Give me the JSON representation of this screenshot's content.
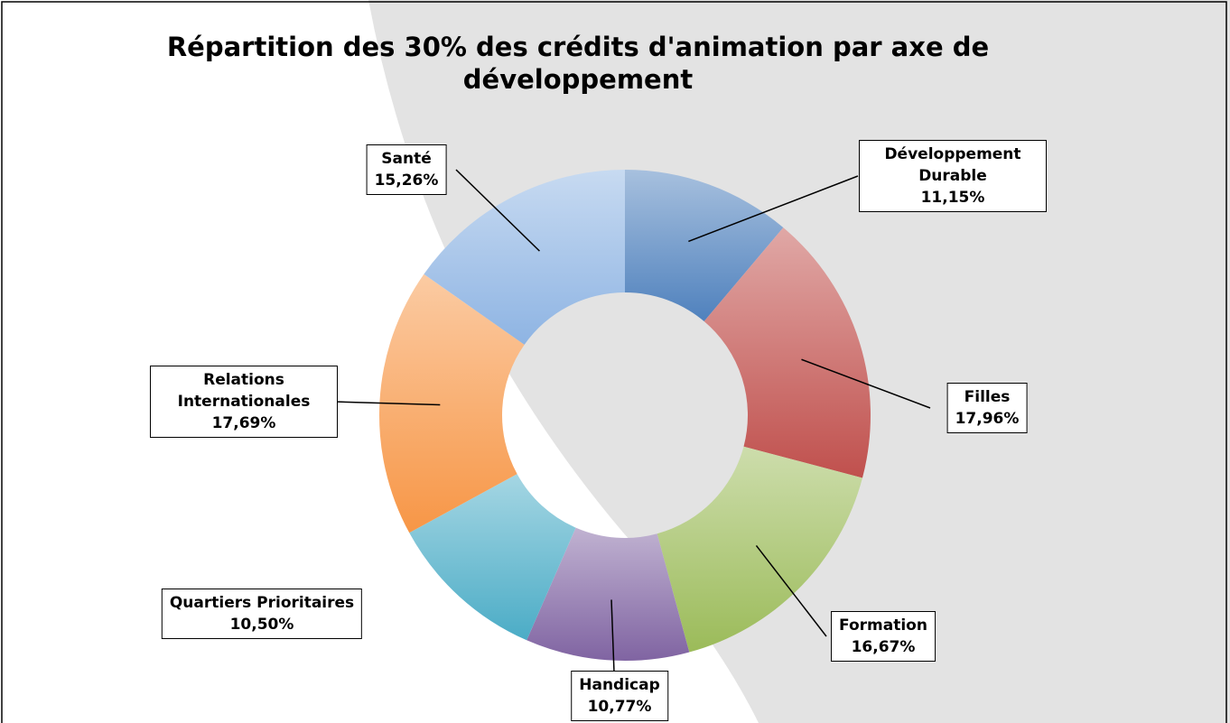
{
  "chart_data": {
    "type": "donut",
    "title": "Répartition des 30% des crédits d'animation par axe de développement",
    "categories": [
      "Développement Durable",
      "Filles",
      "Formation",
      "Handicap",
      "Quartiers Prioritaires",
      "Relations Internationales",
      "Santé"
    ],
    "values": [
      11.15,
      17.96,
      16.67,
      10.77,
      10.5,
      17.69,
      15.26
    ],
    "value_labels": [
      "11,15%",
      "17,96%",
      "16,67%",
      "10,77%",
      "10,50%",
      "17,69%",
      "15,26%"
    ],
    "colors": [
      "#4f81bd",
      "#c0504d",
      "#9bbb59",
      "#8064a2",
      "#4bacc6",
      "#f79646",
      "#8eb4e3"
    ]
  }
}
